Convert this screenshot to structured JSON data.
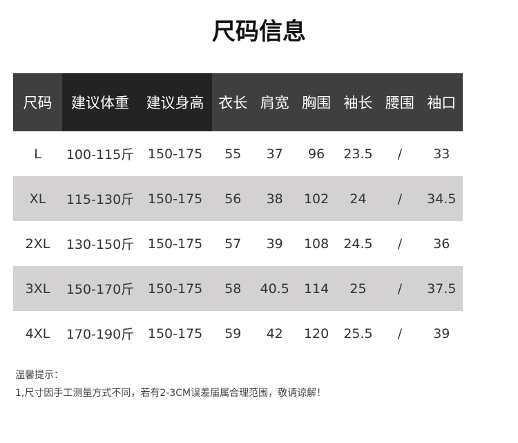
{
  "title": "尺码信息",
  "headers": [
    "尺码",
    "建议体重",
    "建议身高",
    "衣长",
    "肩宽",
    "胸围",
    "袖长",
    "腰围",
    "袖口"
  ],
  "rows": [
    [
      "L",
      "100-115斤",
      "150-175",
      "55",
      "37",
      "96",
      "23.5",
      "/",
      "33"
    ],
    [
      "XL",
      "115-130斤",
      "150-175",
      "56",
      "38",
      "102",
      "24",
      "/",
      "34.5"
    ],
    [
      "2XL",
      "130-150斤",
      "150-175",
      "57",
      "39",
      "108",
      "24.5",
      "/",
      "36"
    ],
    [
      "3XL",
      "150-170斤",
      "150-175",
      "58",
      "40.5",
      "114",
      "25",
      "/",
      "37.5"
    ],
    [
      "4XL",
      "170-190斤",
      "150-175",
      "59",
      "42",
      "120",
      "25.5",
      "/",
      "39"
    ]
  ],
  "note": {
    "heading": "温馨提示：",
    "line1": "1,尺寸因手工测量方式不同，若有2-3CM误差届属合理范围，敬请谅解！"
  }
}
